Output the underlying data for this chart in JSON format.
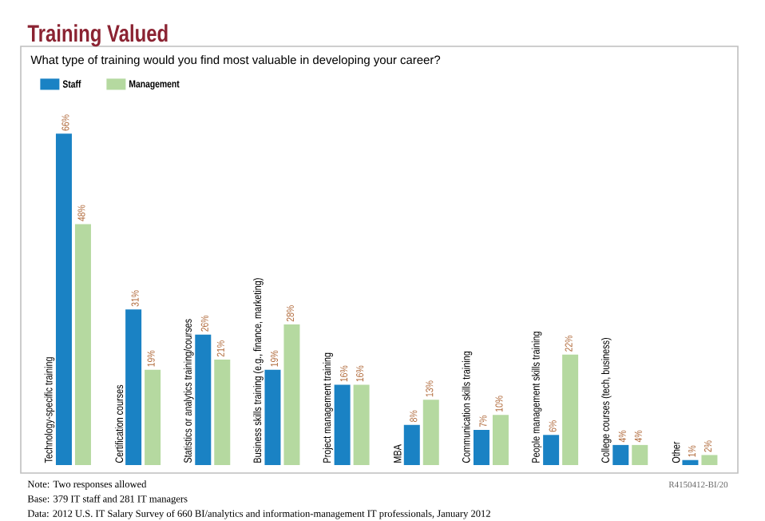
{
  "chart_data": {
    "type": "bar",
    "title": "Training Valued",
    "subtitle": "What type of training would you find most valuable in developing your career?",
    "categories": [
      "Technology-specific training",
      "Certification courses",
      "Statistics or analytics training/courses",
      "Business skills training (e.g., finance, marketing)",
      "Project management training",
      "MBA",
      "Communication skills training",
      "People management skills training",
      "College courses (tech, business)",
      "Other"
    ],
    "series": [
      {
        "name": "Staff",
        "color": "#1a82c4",
        "values": [
          66,
          31,
          26,
          19,
          16,
          8,
          7,
          6,
          4,
          1
        ],
        "value_labels": [
          "66%",
          "31%",
          "26%",
          "19%",
          "16%",
          "8%",
          "7%",
          "6%",
          "4%",
          "1%"
        ]
      },
      {
        "name": "Management",
        "color": "#b5d9a0",
        "values": [
          48,
          19,
          21,
          28,
          16,
          13,
          10,
          22,
          4,
          2
        ],
        "value_labels": [
          "48%",
          "19%",
          "21%",
          "28%",
          "16%",
          "13%",
          "10%",
          "22%",
          "4%",
          "2%"
        ]
      }
    ],
    "legend": "top left",
    "annotations": [
      "R4150412-BI/20",
      "Note: Two responses allowed",
      "Base: 379 IT staff and 281 IT managers",
      "Data: 2012 U.S. IT Salary Survey of 660 BI/analytics and information-management IT professionals, January 2012"
    ]
  }
}
